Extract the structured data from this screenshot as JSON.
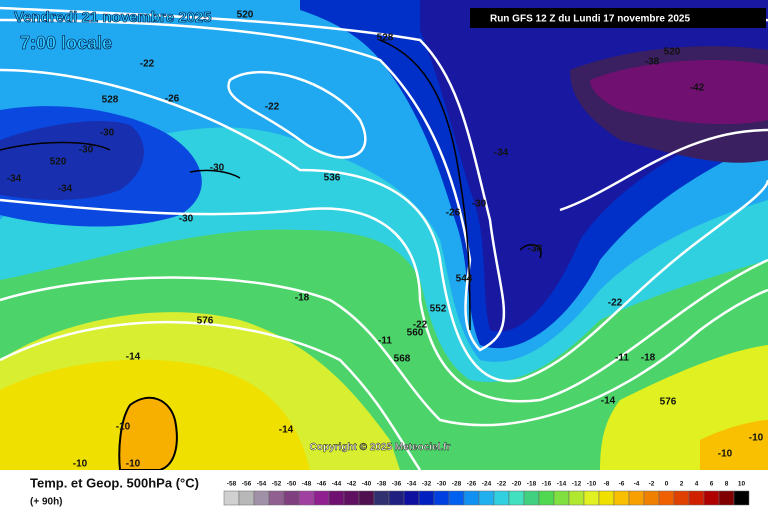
{
  "header": {
    "date": "Vendredi 21 novembre 2025",
    "time": "7:00 locale",
    "run": "Run GFS 12 Z du Lundi 17 novembre 2025"
  },
  "map_labels": [
    520,
    528,
    520,
    -38,
    -42,
    -22,
    -26,
    528,
    -22,
    -30,
    -30,
    520,
    -34,
    -34,
    -30,
    536,
    -34,
    -30,
    -26,
    -30,
    -38,
    544,
    -18,
    552,
    -22,
    576,
    -22,
    560,
    -11,
    -14,
    568,
    -11,
    -18,
    -14,
    576,
    -10,
    -14,
    -10,
    -10,
    -10,
    -10
  ],
  "copyright": "Copyright © 2025 Meteociel.fr",
  "footer": {
    "title": "Temp. et Geop. 500hPa (°C)",
    "lead": "(+ 90h)"
  },
  "legend": {
    "values": [
      -58,
      -56,
      -54,
      -52,
      -50,
      -48,
      -46,
      -44,
      -42,
      -40,
      -38,
      -36,
      -34,
      -32,
      -30,
      -28,
      -26,
      -24,
      -22,
      -20,
      -18,
      -16,
      -14,
      -12,
      -10,
      -8,
      -6,
      -4,
      -2,
      0,
      2,
      4,
      6,
      8,
      10
    ],
    "colors": [
      "#d0d0d0",
      "#b8b8b8",
      "#a090a8",
      "#906090",
      "#804080",
      "#a040a0",
      "#902090",
      "#701070",
      "#601060",
      "#501050",
      "#303070",
      "#202080",
      "#1010a0",
      "#0020c0",
      "#0040e0",
      "#0060f0",
      "#1090f0",
      "#20b0f0",
      "#30d0e0",
      "#40e0c0",
      "#40d080",
      "#50d850",
      "#80e040",
      "#b0e830",
      "#e0f020",
      "#f0e000",
      "#f8c000",
      "#f8a000",
      "#f08000",
      "#f06000",
      "#e04000",
      "#d02000",
      "#b00000",
      "#800000",
      "#000000"
    ]
  }
}
